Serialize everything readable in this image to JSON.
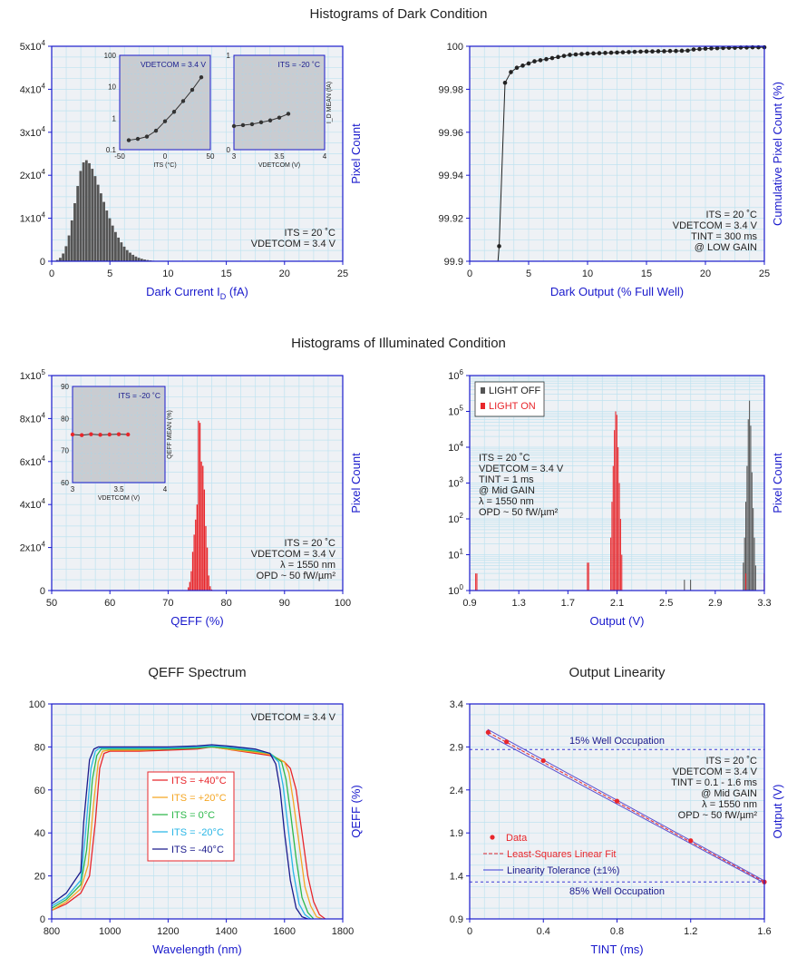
{
  "section_titles": {
    "dark": "Histograms of Dark Condition",
    "illuminated": "Histograms of Illuminated Condition",
    "qeff_spectrum": "QEFF Spectrum",
    "linearity": "Output Linearity"
  },
  "colors": {
    "axis": "#1a1acc",
    "plot_bg": "#eef1f5",
    "grid": "#bfe3f0",
    "bar_dark": "#555555",
    "bar_red": "#e8262b"
  },
  "chart_data": [
    {
      "id": "dark-current-hist",
      "type": "bar",
      "xlabel": "Dark Current I_D (fA)",
      "xlabel_main": "Dark Current I",
      "xlabel_sub": "D",
      "xlabel_tail": " (fA)",
      "ylabel": "Pixel Count",
      "xlim": [
        0,
        25
      ],
      "ylim": [
        0,
        50000
      ],
      "x_ticks": [
        "0",
        "5",
        "10",
        "15",
        "20",
        "25"
      ],
      "y_ticks": [
        "0",
        "1x10^4",
        "2x10^4",
        "3x10^4",
        "4x10^4",
        "5x10^4"
      ],
      "bin_width": 0.25,
      "x": [
        0.5,
        0.75,
        1.0,
        1.25,
        1.5,
        1.75,
        2.0,
        2.25,
        2.5,
        2.75,
        3.0,
        3.25,
        3.5,
        3.75,
        4.0,
        4.25,
        4.5,
        4.75,
        5.0,
        5.25,
        5.5,
        5.75,
        6.0,
        6.25,
        6.5,
        6.75,
        7.0,
        7.25,
        7.5,
        7.75,
        8.0,
        8.25,
        8.5,
        8.75,
        9.0,
        9.25,
        9.5,
        9.75,
        10.0
      ],
      "values": [
        300,
        800,
        1800,
        3500,
        6000,
        9500,
        13500,
        17500,
        21000,
        23000,
        23500,
        22800,
        21500,
        19800,
        17800,
        15800,
        13800,
        11800,
        10000,
        8300,
        6800,
        5500,
        4400,
        3400,
        2600,
        2000,
        1500,
        1100,
        800,
        580,
        400,
        280,
        190,
        120,
        80,
        50,
        30,
        20,
        10
      ],
      "annotations": [
        "ITS = 20 ˚C",
        "VDETCOM = 3.4 V"
      ],
      "insets": [
        {
          "id": "inset-its",
          "type": "line",
          "label": "VDETCOM = 3.4 V",
          "xlabel": "ITS (°C)",
          "xlim": [
            -50,
            50
          ],
          "ylim_log": [
            0.1,
            100
          ],
          "x_ticks": [
            "-50",
            "0",
            "50"
          ],
          "y_ticks": [
            "0.1",
            "1",
            "10",
            "100"
          ],
          "x": [
            -40,
            -30,
            -20,
            -10,
            0,
            10,
            20,
            30,
            40
          ],
          "y": [
            0.2,
            0.22,
            0.26,
            0.4,
            0.8,
            1.6,
            3.5,
            8,
            20
          ]
        },
        {
          "id": "inset-vdetcom",
          "type": "line",
          "label": "ITS = -20 ˚C",
          "xlabel": "VDETCOM (V)",
          "ylabel": "I_D MEAN (fA)",
          "xlim": [
            3,
            4
          ],
          "ylim": [
            0,
            1
          ],
          "x_ticks": [
            "3",
            "3.5",
            "4"
          ],
          "y_ticks": [
            "0",
            "1"
          ],
          "x": [
            3.0,
            3.1,
            3.2,
            3.3,
            3.4,
            3.5,
            3.6
          ],
          "y": [
            0.25,
            0.26,
            0.27,
            0.29,
            0.31,
            0.34,
            0.38
          ]
        }
      ]
    },
    {
      "id": "dark-output-cumulative",
      "type": "scatter",
      "xlabel": "Dark Output (% Full Well)",
      "ylabel": "Cumulative Pixel Count (%)",
      "xlim": [
        0,
        25
      ],
      "ylim": [
        99.9,
        100
      ],
      "x_ticks": [
        "0",
        "5",
        "10",
        "15",
        "20",
        "25"
      ],
      "y_ticks": [
        "99.9",
        "99.92",
        "99.94",
        "99.96",
        "99.98",
        "100"
      ],
      "x": [
        2.5,
        3.0,
        3.5,
        4.0,
        4.5,
        5.0,
        5.5,
        6.0,
        6.5,
        7.0,
        7.5,
        8.0,
        8.5,
        9.0,
        9.5,
        10,
        10.5,
        11,
        11.5,
        12,
        12.5,
        13,
        13.5,
        14,
        14.5,
        15,
        15.5,
        16,
        16.5,
        17,
        17.5,
        18,
        18.5,
        19,
        19.5,
        20,
        20.5,
        21,
        21.5,
        22,
        22.5,
        23,
        23.5,
        24,
        24.5,
        25
      ],
      "y": [
        99.907,
        99.983,
        99.988,
        99.99,
        99.991,
        99.992,
        99.993,
        99.9935,
        99.994,
        99.9945,
        99.995,
        99.9955,
        99.996,
        99.9962,
        99.9964,
        99.9966,
        99.9967,
        99.9968,
        99.9969,
        99.997,
        99.9971,
        99.9972,
        99.9973,
        99.9974,
        99.9975,
        99.9976,
        99.9976,
        99.9977,
        99.9977,
        99.9978,
        99.9978,
        99.9979,
        99.998,
        99.9985,
        99.9987,
        99.9989,
        99.999,
        99.9991,
        99.9992,
        99.9993,
        99.9993,
        99.9994,
        99.9994,
        99.9995,
        99.9995,
        99.9995
      ],
      "annotations": [
        "ITS = 20 ˚C",
        "VDETCOM = 3.4 V",
        "TINT = 300 ms",
        "@ LOW GAIN"
      ]
    },
    {
      "id": "qeff-hist",
      "type": "bar",
      "xlabel": "QEFF (%)",
      "ylabel": "Pixel Count",
      "xlim": [
        50,
        100
      ],
      "ylim": [
        0,
        100000
      ],
      "x_ticks": [
        "50",
        "60",
        "70",
        "80",
        "90",
        "100"
      ],
      "y_ticks": [
        "0",
        "2x10^4",
        "4x10^4",
        "6x10^4",
        "8x10^4",
        "1x10^5"
      ],
      "bin_width": 0.25,
      "x": [
        73.5,
        73.75,
        74.0,
        74.25,
        74.5,
        74.75,
        75.0,
        75.25,
        75.5,
        75.75,
        76.0,
        76.25,
        76.5,
        76.75,
        77.0,
        77.25,
        77.5
      ],
      "values": [
        1500,
        4000,
        9000,
        18000,
        26000,
        33000,
        40000,
        79000,
        78000,
        60000,
        58000,
        47000,
        30000,
        20000,
        7000,
        2000,
        500
      ],
      "annotations": [
        "ITS = 20 ˚C",
        "VDETCOM = 3.4 V",
        "λ = 1550 nm",
        "OPD ~ 50 fW/µm²"
      ],
      "insets": [
        {
          "id": "inset-qeff-vdetcom",
          "type": "line",
          "label": "ITS = -20 ˚C",
          "xlabel": "VDETCOM (V)",
          "ylabel": "QEFF MEAN (%)",
          "xlim": [
            3,
            4
          ],
          "ylim": [
            60,
            90
          ],
          "x_ticks": [
            "3",
            "3.5",
            "4"
          ],
          "y_ticks": [
            "60",
            "70",
            "80",
            "90"
          ],
          "x": [
            3.0,
            3.1,
            3.2,
            3.3,
            3.4,
            3.5,
            3.6
          ],
          "y": [
            75,
            74.8,
            75.1,
            74.9,
            75,
            75.1,
            75
          ]
        }
      ]
    },
    {
      "id": "output-hist",
      "type": "bar",
      "xlabel": "Output (V)",
      "ylabel": "Pixel Count",
      "xlim": [
        0.9,
        3.3
      ],
      "ylim_log": [
        1,
        1000000
      ],
      "x_ticks": [
        "0.9",
        "1.3",
        "1.7",
        "2.1",
        "2.5",
        "2.9",
        "3.3"
      ],
      "y_ticks": [
        "10^0",
        "10^1",
        "10^2",
        "10^3",
        "10^4",
        "10^5",
        "10^6"
      ],
      "series": [
        {
          "name": "LIGHT OFF",
          "x": [
            2.65,
            2.7,
            3.13,
            3.14,
            3.15,
            3.16,
            3.17,
            3.18,
            3.19,
            3.2,
            3.21,
            3.22,
            3.23
          ],
          "values": [
            2,
            2,
            6,
            30,
            300,
            3000,
            60000,
            200000,
            40000,
            2000,
            200,
            30,
            5
          ]
        },
        {
          "name": "LIGHT ON",
          "x": [
            0.95,
            0.96,
            1.86,
            1.87,
            2.05,
            2.06,
            2.07,
            2.08,
            2.09,
            2.1,
            2.11,
            2.12,
            2.13,
            2.14,
            3.15,
            3.3
          ],
          "values": [
            3,
            3,
            6,
            6,
            30,
            300,
            3000,
            30000,
            100000,
            80000,
            10000,
            1000,
            100,
            10,
            3,
            3
          ]
        }
      ],
      "annotations": [
        "ITS = 20 ˚C",
        "VDETCOM = 3.4 V",
        "TINT = 1 ms",
        "@ Mid GAIN",
        "λ = 1550 nm",
        "OPD ~ 50 fW/µm²"
      ]
    },
    {
      "id": "qeff-spectrum",
      "type": "line",
      "xlabel": "Wavelength (nm)",
      "ylabel": "QEFF (%)",
      "xlim": [
        800,
        1800
      ],
      "ylim": [
        0,
        100
      ],
      "x_ticks": [
        "800",
        "1000",
        "1200",
        "1400",
        "1600",
        "1800"
      ],
      "y_ticks": [
        "0",
        "20",
        "40",
        "60",
        "80",
        "100"
      ],
      "series": [
        {
          "name": "ITS = +40°C",
          "color": "#e8262b",
          "x": [
            800,
            850,
            900,
            930,
            950,
            965,
            980,
            1000,
            1100,
            1200,
            1300,
            1350,
            1400,
            1500,
            1550,
            1600,
            1620,
            1640,
            1660,
            1680,
            1700,
            1720,
            1740
          ],
          "y": [
            4,
            7,
            12,
            20,
            45,
            70,
            77,
            78,
            78,
            78.5,
            79,
            80,
            79,
            77,
            76,
            73,
            70,
            60,
            40,
            20,
            8,
            2,
            0
          ]
        },
        {
          "name": "ITS = +20°C",
          "color": "#f5a623",
          "x": [
            800,
            850,
            900,
            925,
            945,
            960,
            975,
            1000,
            1100,
            1200,
            1300,
            1350,
            1400,
            1500,
            1550,
            1600,
            1615,
            1630,
            1650,
            1670,
            1690,
            1710,
            1730
          ],
          "y": [
            4,
            8,
            14,
            25,
            55,
            73,
            78,
            78.5,
            78.5,
            79,
            79.5,
            80,
            79,
            77.5,
            76.5,
            73,
            68,
            55,
            35,
            15,
            6,
            1,
            0
          ]
        },
        {
          "name": "ITS = 0°C",
          "color": "#2db84b",
          "x": [
            800,
            850,
            900,
            920,
            940,
            955,
            970,
            1000,
            1100,
            1200,
            1300,
            1350,
            1400,
            1500,
            1550,
            1590,
            1605,
            1620,
            1640,
            1660,
            1680,
            1700
          ],
          "y": [
            5,
            9,
            16,
            32,
            65,
            76,
            79,
            79,
            79,
            79,
            79.5,
            80,
            79.5,
            78,
            77,
            73,
            65,
            50,
            28,
            10,
            3,
            0
          ]
        },
        {
          "name": "ITS = -20°C",
          "color": "#29b6e6",
          "x": [
            800,
            850,
            900,
            915,
            935,
            950,
            965,
            1000,
            1100,
            1200,
            1300,
            1350,
            1400,
            1500,
            1550,
            1580,
            1595,
            1610,
            1630,
            1650,
            1670,
            1690
          ],
          "y": [
            6,
            10,
            18,
            38,
            70,
            78,
            79.5,
            79.5,
            79.5,
            79.5,
            80,
            80.5,
            80,
            78.5,
            77,
            73,
            62,
            45,
            22,
            7,
            2,
            0
          ]
        },
        {
          "name": "ITS = -40°C",
          "color": "#1a1a8c",
          "x": [
            800,
            850,
            900,
            910,
            930,
            945,
            960,
            1000,
            1100,
            1200,
            1300,
            1350,
            1400,
            1500,
            1550,
            1570,
            1585,
            1600,
            1620,
            1640,
            1660,
            1680
          ],
          "y": [
            7,
            12,
            22,
            45,
            74,
            79,
            80,
            80,
            80,
            80,
            80.5,
            81,
            80.5,
            79,
            77,
            72,
            60,
            40,
            18,
            5,
            1,
            0
          ]
        }
      ],
      "annotations": [
        "VDETCOM = 3.4 V"
      ]
    },
    {
      "id": "output-linearity",
      "type": "scatter",
      "xlabel": "TINT (ms)",
      "ylabel": "Output (V)",
      "xlim": [
        0,
        1.6
      ],
      "ylim": [
        0.9,
        3.4
      ],
      "x_ticks": [
        "0",
        "0.4",
        "0.8",
        "1.2",
        "1.6"
      ],
      "y_ticks": [
        "0.9",
        "1.4",
        "1.9",
        "2.4",
        "2.9",
        "3.4"
      ],
      "data": {
        "x": [
          0.1,
          0.2,
          0.4,
          0.8,
          1.2,
          1.6
        ],
        "y": [
          3.07,
          2.96,
          2.74,
          2.27,
          1.81,
          1.33
        ]
      },
      "fit": {
        "x": [
          0.1,
          1.6
        ],
        "y": [
          3.07,
          1.33
        ]
      },
      "reference_lines": [
        {
          "y": 2.87,
          "label": "15% Well Occupation"
        },
        {
          "y": 1.33,
          "label": "85% Well Occupation"
        }
      ],
      "legend": [
        "Data",
        "Least-Squares Linear Fit",
        "Linearity Tolerance (±1%)"
      ],
      "annotations": [
        "ITS = 20 ˚C",
        "VDETCOM = 3.4 V",
        "TINT = 0.1 - 1.6 ms",
        "@ Mid GAIN",
        "λ = 1550 nm",
        "OPD ~ 50 fW/µm²"
      ]
    }
  ]
}
